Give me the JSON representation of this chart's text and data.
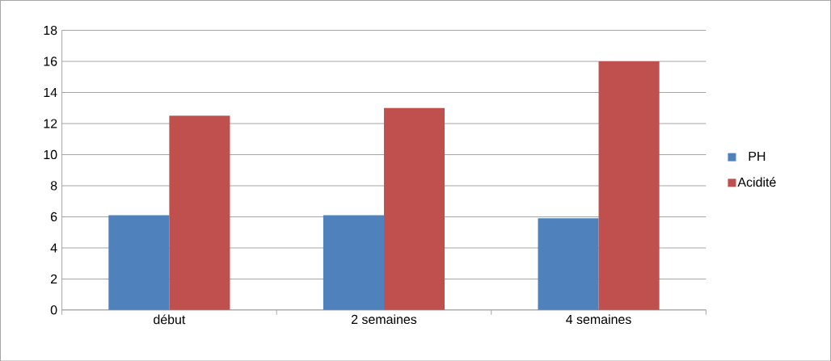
{
  "chart_data": {
    "type": "bar",
    "categories": [
      "début",
      "2 semaines",
      "4 semaines"
    ],
    "series": [
      {
        "name": "PH",
        "color": "#4f81bd",
        "values": [
          6.1,
          6.1,
          5.9
        ]
      },
      {
        "name": "Acidité",
        "color": "#c0504d",
        "values": [
          12.5,
          13,
          16
        ]
      }
    ],
    "ylim": [
      0,
      18
    ],
    "yticks": [
      0,
      2,
      4,
      6,
      8,
      10,
      12,
      14,
      16,
      18
    ],
    "grid": "y",
    "legend": "right"
  }
}
